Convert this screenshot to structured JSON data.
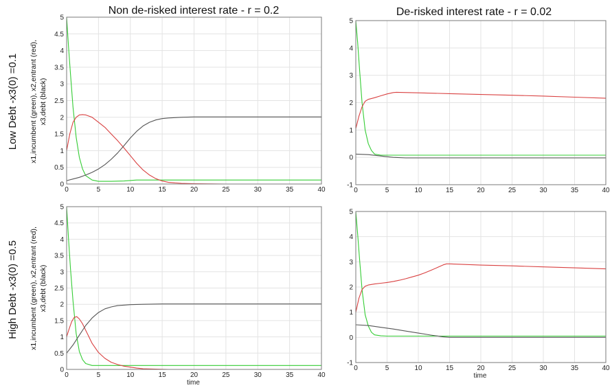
{
  "figure": {
    "col_titles": [
      "Non de-risked interest rate - r = 0.2",
      "De-risked interest rate - r = 0.02"
    ],
    "row_labels": [
      "Low Debt -x3(0) =0.1",
      "High Debt -x3(0) =0.5"
    ],
    "y_axis_label_line1": "x1,incumbent (green), x2,entrant (red),",
    "y_axis_label_line2": "x3,debt (black)",
    "x_axis_label": "time"
  },
  "chart_data": [
    {
      "type": "line",
      "xlim": [
        0,
        40
      ],
      "ylim": [
        0,
        5
      ],
      "xticks": [
        0,
        5,
        10,
        15,
        20,
        25,
        30,
        35,
        40
      ],
      "yticks": [
        0,
        0.5,
        1,
        1.5,
        2,
        2.5,
        3,
        3.5,
        4,
        4.5,
        5
      ],
      "ytick_labels": [
        "0",
        "0.5",
        "1",
        "1.5",
        "2",
        "2.5",
        "3",
        "3.5",
        "4",
        "4.5",
        "5"
      ],
      "grid": true,
      "xlabel": "",
      "series": [
        {
          "color": "#33cc33",
          "x": [
            0,
            0.3,
            0.6,
            1,
            1.5,
            2,
            2.5,
            3,
            4,
            5,
            7,
            9,
            11,
            13,
            16,
            20,
            30,
            40
          ],
          "y": [
            5,
            4.1,
            3.3,
            2.3,
            1.4,
            0.8,
            0.45,
            0.25,
            0.12,
            0.08,
            0.08,
            0.09,
            0.12,
            0.12,
            0.12,
            0.12,
            0.12,
            0.12
          ]
        },
        {
          "color": "#d94040",
          "x": [
            0,
            0.5,
            1,
            1.5,
            2,
            2.5,
            3,
            4,
            5,
            6,
            7,
            8,
            9,
            10,
            11,
            12,
            13,
            14,
            15,
            16,
            18,
            20,
            25,
            30,
            40
          ],
          "y": [
            1,
            1.5,
            1.85,
            2.0,
            2.07,
            2.08,
            2.07,
            2.0,
            1.85,
            1.7,
            1.5,
            1.3,
            1.08,
            0.85,
            0.62,
            0.42,
            0.27,
            0.16,
            0.09,
            0.05,
            0.02,
            0.01,
            0,
            0,
            0
          ]
        },
        {
          "color": "#555555",
          "x": [
            0,
            1,
            2,
            3,
            4,
            5,
            6,
            7,
            8,
            9,
            10,
            11,
            12,
            13,
            14,
            15,
            16,
            17,
            18,
            20,
            22,
            25,
            30,
            40
          ],
          "y": [
            0.1,
            0.15,
            0.2,
            0.27,
            0.35,
            0.45,
            0.58,
            0.74,
            0.93,
            1.15,
            1.38,
            1.58,
            1.74,
            1.85,
            1.92,
            1.96,
            1.98,
            1.99,
            2.0,
            2.01,
            2.01,
            2.01,
            2.01,
            2.01
          ]
        }
      ]
    },
    {
      "type": "line",
      "xlim": [
        0,
        40
      ],
      "ylim": [
        -1,
        5
      ],
      "xticks": [
        0,
        5,
        10,
        15,
        20,
        25,
        30,
        35,
        40
      ],
      "yticks": [
        -1,
        0,
        1,
        2,
        3,
        4,
        5
      ],
      "ytick_labels": [
        "-1",
        "0",
        "1",
        "2",
        "3",
        "4",
        "5"
      ],
      "grid": true,
      "xlabel": "",
      "series": [
        {
          "color": "#33cc33",
          "x": [
            0,
            0.3,
            0.6,
            1,
            1.5,
            2,
            2.5,
            3,
            4,
            5,
            10,
            20,
            40
          ],
          "y": [
            5,
            4.2,
            3.2,
            2.0,
            1.0,
            0.5,
            0.25,
            0.12,
            0.08,
            0.08,
            0.08,
            0.08,
            0.08
          ]
        },
        {
          "color": "#d94040",
          "x": [
            0,
            0.5,
            1,
            1.5,
            2,
            3,
            4,
            5,
            6,
            6.5,
            10,
            15,
            20,
            25,
            30,
            35,
            40
          ],
          "y": [
            1.05,
            1.5,
            1.85,
            2.05,
            2.12,
            2.18,
            2.25,
            2.32,
            2.37,
            2.38,
            2.36,
            2.33,
            2.3,
            2.27,
            2.24,
            2.2,
            2.16
          ]
        },
        {
          "color": "#555555",
          "x": [
            0,
            2,
            4,
            6,
            8,
            10,
            20,
            40
          ],
          "y": [
            0.12,
            0.1,
            0.05,
            0.0,
            -0.02,
            -0.02,
            -0.02,
            -0.02
          ]
        }
      ]
    },
    {
      "type": "line",
      "xlim": [
        0,
        40
      ],
      "ylim": [
        0,
        5
      ],
      "xticks": [
        0,
        5,
        10,
        15,
        20,
        25,
        30,
        35,
        40
      ],
      "yticks": [
        0,
        0.5,
        1,
        1.5,
        2,
        2.5,
        3,
        3.5,
        4,
        4.5,
        5
      ],
      "ytick_labels": [
        "0",
        "0.5",
        "1",
        "1.5",
        "2",
        "2.5",
        "3",
        "3.5",
        "4",
        "4.5",
        "5"
      ],
      "grid": true,
      "xlabel": "time",
      "series": [
        {
          "color": "#33cc33",
          "x": [
            0,
            0.3,
            0.6,
            1,
            1.5,
            2,
            2.5,
            3,
            4,
            5,
            8,
            12,
            20,
            40
          ],
          "y": [
            5,
            4.0,
            3.1,
            2.1,
            1.1,
            0.55,
            0.3,
            0.18,
            0.12,
            0.12,
            0.12,
            0.12,
            0.12,
            0.12
          ]
        },
        {
          "color": "#d94040",
          "x": [
            0,
            0.4,
            0.8,
            1.2,
            1.6,
            2,
            2.5,
            3,
            3.5,
            4,
            5,
            6,
            7,
            8,
            9,
            10,
            11,
            12,
            14,
            16,
            20,
            40
          ],
          "y": [
            1,
            1.25,
            1.47,
            1.6,
            1.62,
            1.55,
            1.4,
            1.2,
            1.0,
            0.8,
            0.52,
            0.34,
            0.22,
            0.15,
            0.1,
            0.07,
            0.04,
            0.02,
            0.01,
            0,
            0,
            0
          ]
        },
        {
          "color": "#555555",
          "x": [
            0,
            1,
            2,
            3,
            4,
            5,
            6,
            7,
            8,
            10,
            12,
            15,
            20,
            30,
            40
          ],
          "y": [
            0.5,
            0.75,
            1.05,
            1.35,
            1.58,
            1.75,
            1.86,
            1.92,
            1.96,
            1.99,
            2.0,
            2.01,
            2.01,
            2.01,
            2.01
          ]
        }
      ]
    },
    {
      "type": "line",
      "xlim": [
        0,
        40
      ],
      "ylim": [
        -1,
        5
      ],
      "xticks": [
        0,
        5,
        10,
        15,
        20,
        25,
        30,
        35,
        40
      ],
      "yticks": [
        -1,
        0,
        1,
        2,
        3,
        4,
        5
      ],
      "ytick_labels": [
        "-1",
        "0",
        "1",
        "2",
        "3",
        "4",
        "5"
      ],
      "grid": true,
      "xlabel": "time",
      "series": [
        {
          "color": "#33cc33",
          "x": [
            0,
            0.3,
            0.6,
            1,
            1.5,
            2,
            2.5,
            3,
            4,
            5,
            10,
            20,
            40
          ],
          "y": [
            5,
            4.1,
            3.1,
            1.9,
            0.9,
            0.45,
            0.2,
            0.1,
            0.06,
            0.05,
            0.05,
            0.05,
            0.05
          ]
        },
        {
          "color": "#d94040",
          "x": [
            0,
            0.5,
            1,
            1.5,
            2,
            3,
            4,
            5,
            6,
            7,
            8,
            9,
            10,
            11,
            12,
            13,
            14,
            14.5,
            15,
            20,
            25,
            30,
            35,
            40
          ],
          "y": [
            1.0,
            1.55,
            1.9,
            2.03,
            2.08,
            2.12,
            2.15,
            2.18,
            2.22,
            2.27,
            2.33,
            2.4,
            2.47,
            2.56,
            2.66,
            2.77,
            2.88,
            2.92,
            2.92,
            2.87,
            2.84,
            2.8,
            2.76,
            2.72
          ]
        },
        {
          "color": "#555555",
          "x": [
            0,
            2,
            4,
            6,
            8,
            10,
            12,
            14,
            15,
            20,
            40
          ],
          "y": [
            0.5,
            0.47,
            0.4,
            0.33,
            0.25,
            0.17,
            0.09,
            0.02,
            0.0,
            0.0,
            0.0
          ]
        }
      ]
    }
  ]
}
